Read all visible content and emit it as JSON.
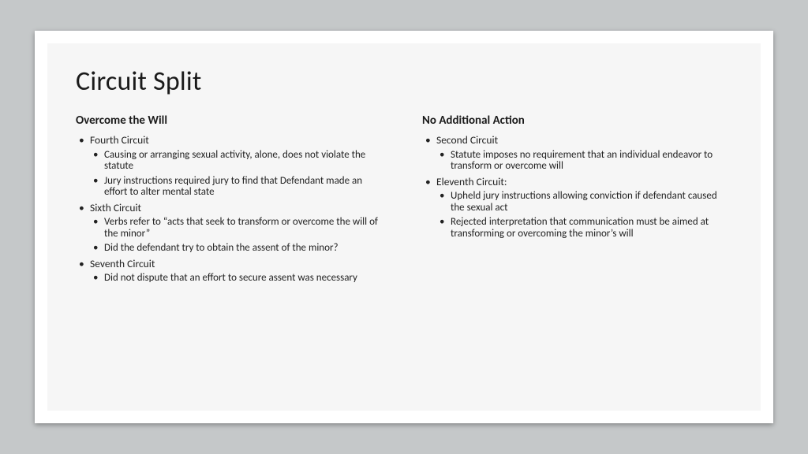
{
  "title": "Circuit Split",
  "left": {
    "heading": "Overcome the Will",
    "items": [
      {
        "label": "Fourth Circuit",
        "sub": [
          "Causing or arranging sexual activity, alone, does not violate the statute",
          "Jury instructions required jury to find that Defendant made an effort to alter mental state"
        ]
      },
      {
        "label": "Sixth Circuit",
        "sub": [
          "Verbs refer to “acts that seek to transform or overcome the will of the minor”",
          "Did the defendant try to obtain the assent of the minor?"
        ]
      },
      {
        "label": "Seventh Circuit",
        "sub": [
          "Did not dispute that an effort to secure assent was necessary"
        ]
      }
    ]
  },
  "right": {
    "heading": "No Additional Action",
    "items": [
      {
        "label": "Second Circuit",
        "sub": [
          "Statute imposes no requirement that an individual endeavor to transform or overcome will"
        ]
      },
      {
        "label": "Eleventh Circuit:",
        "sub": [
          "Upheld jury instructions allowing conviction if defendant caused the sexual act",
          "Rejected interpretation that communication must be aimed at transforming or overcoming the minor’s will"
        ]
      }
    ]
  },
  "colors": {
    "page_bg": "#c5c8c9",
    "slide_bg": "#ffffff",
    "inner_bg": "#f6f6f6",
    "text": "#1a1a1a"
  }
}
